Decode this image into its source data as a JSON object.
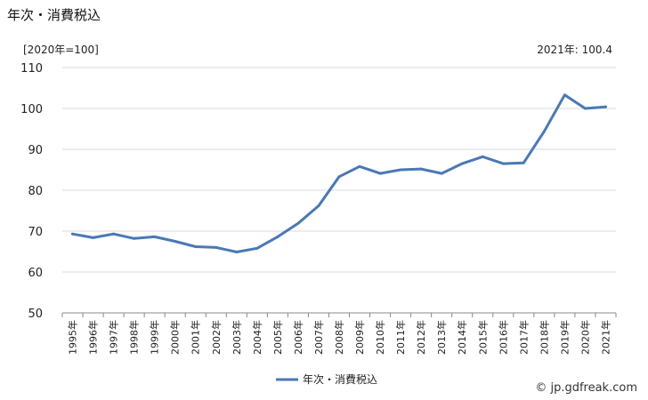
{
  "header": {
    "title": "年次・消費税込",
    "unit": "[2020年=100]",
    "latest": "2021年: 100.4"
  },
  "watermark": "© jp.gdfreak.com",
  "colors": {
    "line": "#4a78b5",
    "grid": "#d9d9d9",
    "axis": "#888888"
  },
  "chart_data": {
    "type": "line",
    "title": "",
    "xlabel": "",
    "ylabel": "",
    "ylim": [
      50,
      110
    ],
    "yticks": [
      50,
      60,
      70,
      80,
      90,
      100,
      110
    ],
    "grid": true,
    "legend_position": "bottom-center",
    "categories": [
      "1995年",
      "1996年",
      "1997年",
      "1998年",
      "1999年",
      "2000年",
      "2001年",
      "2002年",
      "2003年",
      "2004年",
      "2005年",
      "2006年",
      "2007年",
      "2008年",
      "2009年",
      "2010年",
      "2011年",
      "2012年",
      "2013年",
      "2014年",
      "2015年",
      "2016年",
      "2017年",
      "2018年",
      "2019年",
      "2020年",
      "2021年"
    ],
    "series": [
      {
        "name": "年次・消費税込",
        "values": [
          69.3,
          68.4,
          69.3,
          68.2,
          68.6,
          67.5,
          66.2,
          66.0,
          64.9,
          65.8,
          68.6,
          71.9,
          76.2,
          83.3,
          85.8,
          84.1,
          85.0,
          85.2,
          84.1,
          86.5,
          88.2,
          86.5,
          86.7,
          94.4,
          103.3,
          100.0,
          100.4
        ]
      }
    ]
  }
}
